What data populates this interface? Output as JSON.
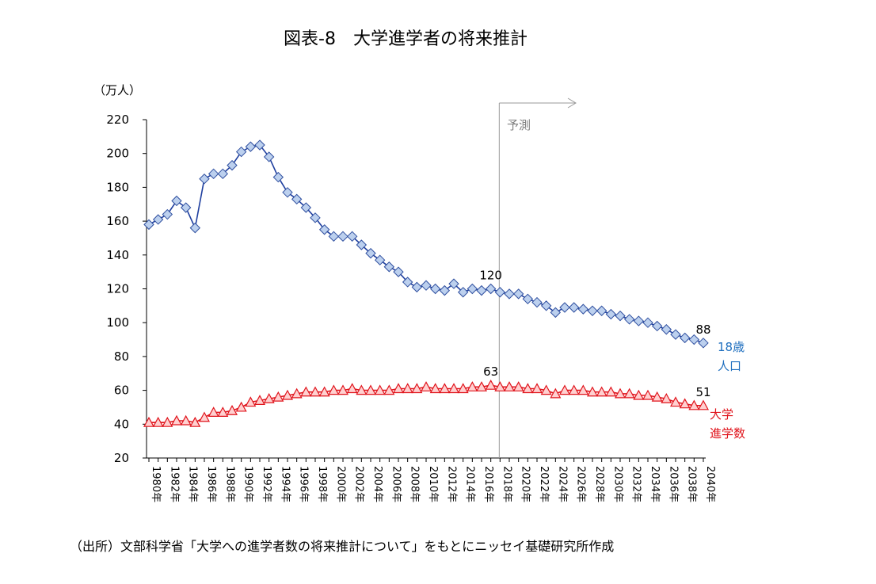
{
  "chart_data": {
    "type": "line",
    "title": "図表-8　大学進学者の将来推計",
    "ylabel": "（万人）",
    "ylim": [
      20,
      220
    ],
    "yticks": [
      20,
      40,
      60,
      80,
      100,
      120,
      140,
      160,
      180,
      200,
      220
    ],
    "grid": false,
    "x": [
      1980,
      1981,
      1982,
      1983,
      1984,
      1985,
      1986,
      1987,
      1988,
      1989,
      1990,
      1991,
      1992,
      1993,
      1994,
      1995,
      1996,
      1997,
      1998,
      1999,
      2000,
      2001,
      2002,
      2003,
      2004,
      2005,
      2006,
      2007,
      2008,
      2009,
      2010,
      2011,
      2012,
      2013,
      2014,
      2015,
      2016,
      2017,
      2018,
      2019,
      2020,
      2021,
      2022,
      2023,
      2024,
      2025,
      2026,
      2027,
      2028,
      2029,
      2030,
      2031,
      2032,
      2033,
      2034,
      2035,
      2036,
      2037,
      2038,
      2039,
      2040
    ],
    "xtick_labels": [
      "1980年",
      "1982年",
      "1984年",
      "1986年",
      "1988年",
      "1990年",
      "1992年",
      "1994年",
      "1996年",
      "1998年",
      "2000年",
      "2002年",
      "2004年",
      "2006年",
      "2008年",
      "2010年",
      "2012年",
      "2014年",
      "2016年",
      "2018年",
      "2020年",
      "2022年",
      "2024年",
      "2026年",
      "2028年",
      "2030年",
      "2032年",
      "2034年",
      "2036年",
      "2038年",
      "2040年"
    ],
    "series": [
      {
        "name": "18歳人口",
        "name_lines": [
          "18歳",
          "人口"
        ],
        "color": "#1f3f9f",
        "marker_fill": "#bcd0ee",
        "marker_stroke": "#2f4f9f",
        "label_color": "#1f6fbf",
        "marker": "diamond",
        "values": [
          158,
          161,
          164,
          172,
          168,
          156,
          185,
          188,
          188,
          193,
          201,
          204,
          205,
          198,
          186,
          177,
          173,
          168,
          162,
          155,
          151,
          151,
          151,
          146,
          141,
          137,
          133,
          130,
          124,
          121,
          122,
          120,
          119,
          123,
          118,
          120,
          119,
          120,
          118,
          117,
          117,
          114,
          112,
          110,
          106,
          109,
          109,
          108,
          107,
          107,
          105,
          104,
          102,
          101,
          100,
          98,
          96,
          93,
          91,
          90,
          88
        ],
        "annotations": [
          {
            "x": 2017,
            "text": "120"
          },
          {
            "x": 2040,
            "text": "88"
          }
        ]
      },
      {
        "name": "大学進学数",
        "name_lines": [
          "大学",
          "進学数"
        ],
        "color": "#e0141c",
        "marker_fill": "#ffd0d0",
        "marker_stroke": "#e0141c",
        "label_color": "#e0141c",
        "marker": "triangle",
        "values": [
          41,
          41,
          41,
          42,
          42,
          41,
          44,
          47,
          47,
          48,
          50,
          53,
          54,
          55,
          56,
          57,
          58,
          59,
          59,
          59,
          60,
          60,
          61,
          60,
          60,
          60,
          60,
          61,
          61,
          61,
          62,
          61,
          61,
          61,
          61,
          62,
          62,
          63,
          62,
          62,
          62,
          61,
          61,
          60,
          58,
          60,
          60,
          60,
          59,
          59,
          59,
          58,
          58,
          57,
          57,
          56,
          55,
          53,
          52,
          51,
          51
        ],
        "annotations": [
          {
            "x": 2017,
            "text": "63"
          },
          {
            "x": 2040,
            "text": "51"
          }
        ]
      }
    ],
    "forecast": {
      "label": "予測",
      "start_x": 2018
    }
  },
  "source": "（出所）文部科学省「大学への進学者数の将来推計について」をもとにニッセイ基礎研究所作成"
}
